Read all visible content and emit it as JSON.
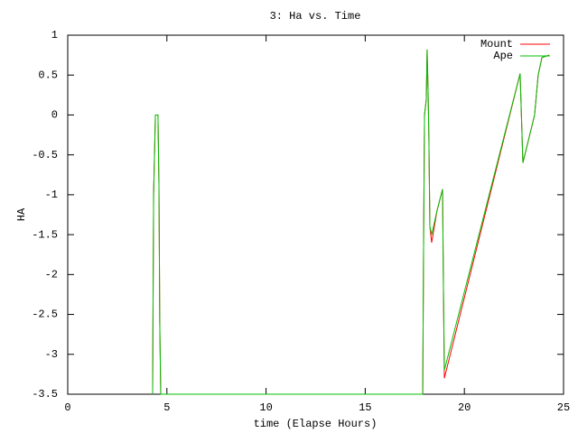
{
  "chart_data": {
    "type": "line",
    "title": "3: Ha vs. Time",
    "x_label": "time (Elapse Hours)",
    "y_label": "HA",
    "x": [
      4.28,
      4.33,
      4.42,
      4.55,
      4.6,
      4.64,
      4.69,
      17.9,
      17.94,
      17.99,
      18.08,
      18.12,
      18.17,
      18.21,
      18.26,
      18.35,
      18.62,
      18.9,
      18.94,
      18.99,
      22.81,
      22.95,
      23.54,
      23.72,
      23.91,
      24.27
    ],
    "series": [
      {
        "name": "Mount",
        "color": "#ff0000",
        "values": [
          -3.5,
          -1,
          0,
          0,
          -0.9,
          -2.6,
          -3.5,
          -3.5,
          -1.72,
          0,
          0.2,
          0.82,
          0.3,
          -0.3,
          -1.4,
          -1.6,
          -1.2,
          -0.93,
          -2.1,
          -3.3,
          0.52,
          -0.6,
          0,
          0.5,
          0.72,
          0.75
        ]
      },
      {
        "name": "Ape",
        "color": "#00c000",
        "values": [
          -3.5,
          -1,
          0,
          0,
          -0.9,
          -2.6,
          -3.5,
          -3.5,
          -1.72,
          0,
          0.2,
          0.82,
          0.3,
          -0.3,
          -1.4,
          -1.5,
          -1.2,
          -0.93,
          -2.05,
          -3.2,
          0.52,
          -0.6,
          0,
          0.5,
          0.72,
          0.75
        ]
      }
    ],
    "xlim": [
      0,
      25
    ],
    "xticks": [
      0,
      5,
      10,
      15,
      20,
      25
    ],
    "ylim": [
      -3.5,
      1
    ],
    "yticks": [
      -3.5,
      -3,
      -2.5,
      -2,
      -1.5,
      -1,
      -0.5,
      0,
      0.5,
      1
    ],
    "grid": false,
    "legend_position": "top-right"
  }
}
